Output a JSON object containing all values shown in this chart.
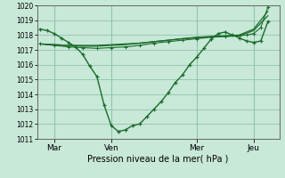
{
  "background_color": "#c8e8d8",
  "grid_color": "#90c4ac",
  "line_color": "#1a6b2a",
  "xlabel": "Pression niveau de la mer( hPa )",
  "ylim": [
    1011,
    1020
  ],
  "yticks": [
    1011,
    1012,
    1013,
    1014,
    1015,
    1016,
    1017,
    1018,
    1019,
    1020
  ],
  "xtick_labels": [
    "Mar",
    "Ven",
    "Mer",
    "Jeu"
  ],
  "xtick_positions": [
    0.5,
    2.5,
    5.5,
    7.5
  ],
  "vlines": [
    0.5,
    2.5,
    5.5,
    7.5
  ],
  "xlim": [
    -0.1,
    8.4
  ],
  "series1_x": [
    0.0,
    0.25,
    0.5,
    0.75,
    1.0,
    1.25,
    1.5,
    1.75,
    2.0,
    2.25,
    2.5,
    2.75,
    3.0,
    3.25,
    3.5,
    3.75,
    4.0,
    4.25,
    4.5,
    4.75,
    5.0,
    5.25,
    5.5,
    5.75,
    6.0,
    6.25,
    6.5,
    6.75,
    7.0,
    7.25,
    7.5,
    7.75,
    8.0
  ],
  "series1_y": [
    1018.4,
    1018.3,
    1018.1,
    1017.8,
    1017.5,
    1017.2,
    1016.7,
    1015.9,
    1015.2,
    1013.3,
    1011.9,
    1011.5,
    1011.6,
    1011.9,
    1012.0,
    1012.5,
    1013.0,
    1013.5,
    1014.1,
    1014.8,
    1015.3,
    1016.0,
    1016.5,
    1017.1,
    1017.7,
    1018.1,
    1018.2,
    1018.0,
    1017.8,
    1017.6,
    1017.5,
    1017.6,
    1018.9
  ],
  "series2_x": [
    0.0,
    0.5,
    1.0,
    1.5,
    2.0,
    2.5,
    3.0,
    3.5,
    4.0,
    4.5,
    5.0,
    5.5,
    6.0,
    6.5,
    7.0,
    7.5,
    8.0
  ],
  "series2_y": [
    1017.4,
    1017.35,
    1017.3,
    1017.3,
    1017.3,
    1017.35,
    1017.4,
    1017.45,
    1017.55,
    1017.65,
    1017.75,
    1017.85,
    1017.9,
    1017.95,
    1018.0,
    1018.4,
    1019.6
  ],
  "series3_x": [
    0.0,
    0.5,
    1.0,
    1.5,
    2.0,
    2.5,
    3.0,
    3.5,
    4.0,
    4.5,
    5.0,
    5.5,
    6.0,
    6.5,
    7.0,
    7.5,
    8.0
  ],
  "series3_y": [
    1017.4,
    1017.35,
    1017.3,
    1017.25,
    1017.25,
    1017.3,
    1017.35,
    1017.45,
    1017.55,
    1017.65,
    1017.75,
    1017.82,
    1017.88,
    1017.92,
    1017.95,
    1018.3,
    1019.3
  ],
  "series4_x": [
    0.0,
    0.5,
    1.0,
    1.5,
    2.0,
    2.5,
    3.0,
    3.5,
    4.0,
    4.5,
    5.0,
    5.5,
    6.0,
    6.5,
    7.0,
    7.25,
    7.5,
    7.75,
    8.0
  ],
  "series4_y": [
    1017.4,
    1017.3,
    1017.2,
    1017.15,
    1017.1,
    1017.15,
    1017.2,
    1017.3,
    1017.45,
    1017.55,
    1017.65,
    1017.75,
    1017.85,
    1017.9,
    1017.95,
    1018.0,
    1018.1,
    1018.5,
    1019.9
  ]
}
